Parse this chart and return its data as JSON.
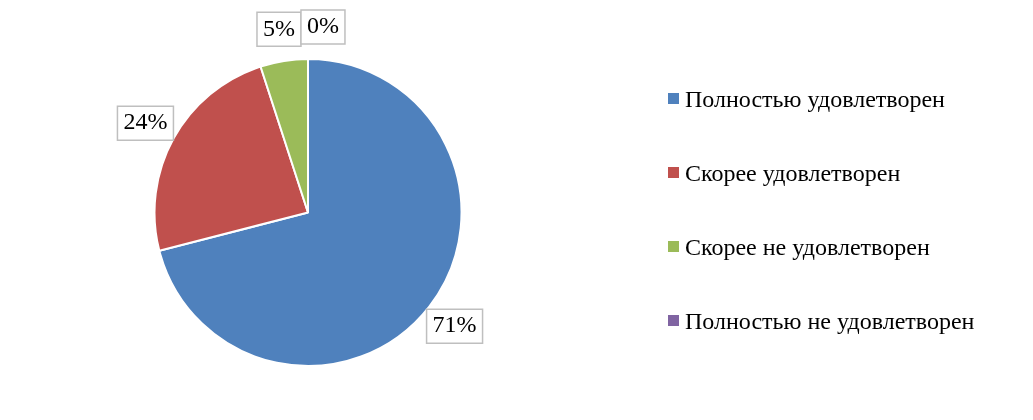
{
  "chart_data": {
    "type": "pie",
    "categories": [
      "Полностью удовлетворен",
      "Скорее удовлетворен",
      "Скорее не удовлетворен",
      "Полностью не удовлетворен"
    ],
    "values": [
      71,
      24,
      5,
      0
    ],
    "value_labels": [
      "71%",
      "24%",
      "5%",
      "0%"
    ],
    "colors": [
      "#4f81bd",
      "#c0504d",
      "#9bbb59",
      "#8064a2"
    ],
    "legend": "right"
  }
}
